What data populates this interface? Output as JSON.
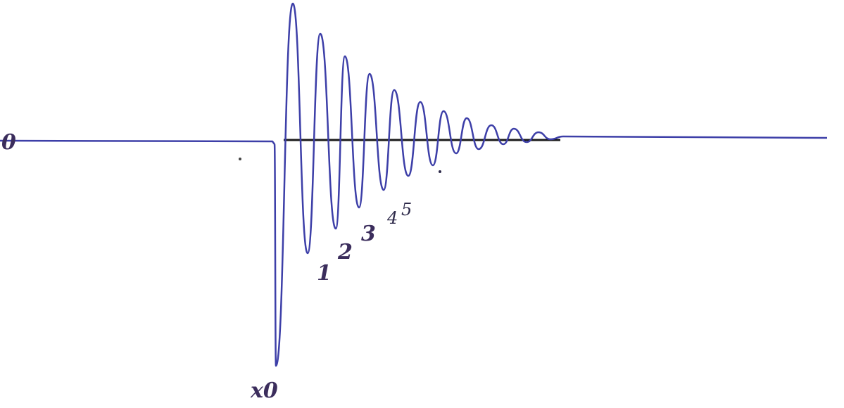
{
  "labels": {
    "origin": "0",
    "start": "x0",
    "counts": [
      "1",
      "2",
      "3",
      "4",
      "5"
    ]
  }
}
